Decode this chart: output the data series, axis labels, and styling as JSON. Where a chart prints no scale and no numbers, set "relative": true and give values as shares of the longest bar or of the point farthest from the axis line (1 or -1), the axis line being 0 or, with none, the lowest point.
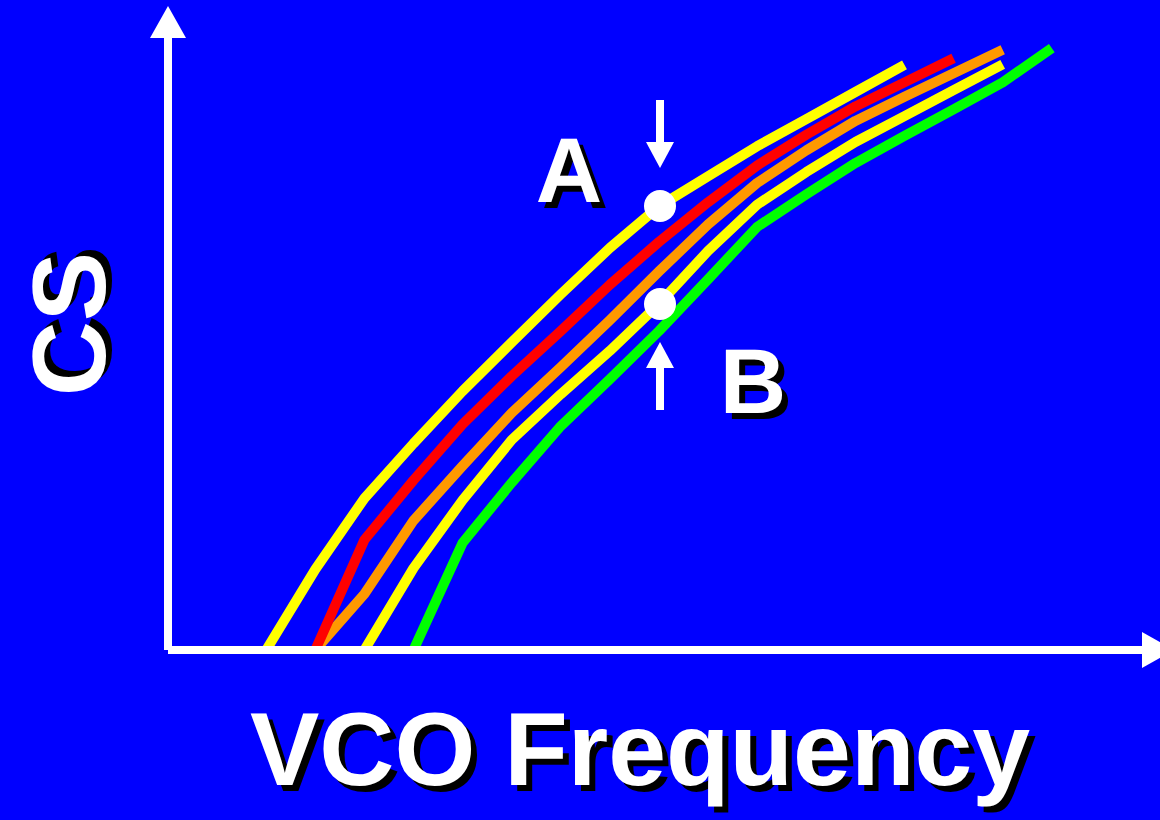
{
  "chart_data": {
    "type": "line",
    "relative": true,
    "xlabel": "VCO Frequency",
    "ylabel": "CS",
    "tick_labels": false,
    "grid": false,
    "legend": false,
    "marker": "none",
    "line_style": "solid",
    "categories": [
      null,
      null,
      null,
      null,
      null,
      null,
      null,
      null,
      null,
      null,
      null,
      null,
      null,
      null,
      null,
      null,
      null,
      null,
      null,
      null,
      null
    ],
    "series": [
      {
        "color": "#ffff00",
        "values": [
          null,
          null,
          0,
          0.134,
          0.252,
          0.343,
          0.43,
          0.511,
          0.591,
          0.668,
          0.737,
          0.787,
          0.837,
          0.882,
          0.927,
          0.972,
          null,
          null,
          null,
          null,
          null
        ]
      },
      {
        "color": "#ff0000",
        "values": [
          null,
          null,
          null,
          0,
          0.183,
          0.282,
          0.375,
          0.455,
          0.53,
          0.607,
          0.678,
          0.744,
          0.805,
          0.856,
          0.903,
          0.943,
          0.983,
          null,
          null,
          null,
          null
        ]
      },
      {
        "color": "#ff9900",
        "values": [
          null,
          null,
          null,
          0,
          0.093,
          0.215,
          0.306,
          0.394,
          0.47,
          0.548,
          0.629,
          0.707,
          0.776,
          0.83,
          0.879,
          0.919,
          0.958,
          0.997,
          null,
          null,
          null
        ]
      },
      {
        "color": "#ffff00",
        "values": [
          null,
          null,
          null,
          null,
          0,
          0.136,
          0.249,
          0.349,
          0.425,
          0.497,
          0.575,
          0.663,
          0.74,
          0.794,
          0.844,
          0.887,
          0.93,
          0.973,
          null,
          null,
          null
        ]
      },
      {
        "color": "#00ff00",
        "values": [
          null,
          null,
          null,
          null,
          null,
          0,
          0.178,
          0.278,
          0.372,
          0.45,
          0.53,
          0.616,
          0.703,
          0.757,
          0.809,
          0.854,
          0.898,
          0.943,
          1,
          null,
          null
        ]
      }
    ],
    "annotations": [
      "A",
      "B"
    ]
  }
}
